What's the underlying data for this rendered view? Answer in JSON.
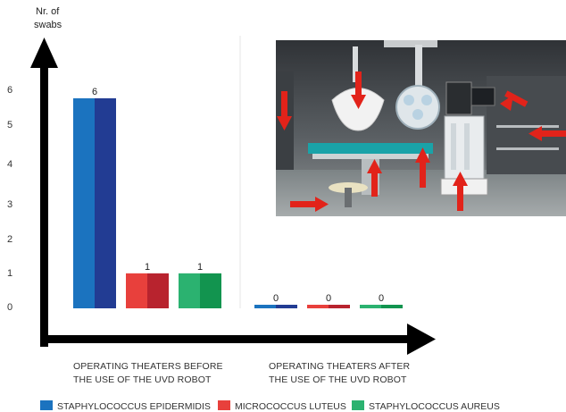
{
  "chart_data": {
    "type": "bar",
    "ylabel_lines": [
      "Nr. of",
      "swabs"
    ],
    "yticks": [
      0,
      1,
      2,
      3,
      4,
      5,
      6
    ],
    "categories": [
      [
        "OPERATING THEATERS BEFORE",
        "THE USE OF THE UVD ROBOT"
      ],
      [
        "OPERATING THEATERS AFTER",
        "THE USE OF THE UVD ROBOT"
      ]
    ],
    "series": [
      {
        "name": "STAPHYLOCOCCUS EPIDERMIDIS",
        "values": [
          6,
          0
        ],
        "color": "#1b73bf",
        "color_dark": "#223c93"
      },
      {
        "name": "MICROCOCCUS LUTEUS",
        "values": [
          1,
          0
        ],
        "color": "#e8403c",
        "color_dark": "#b8232e"
      },
      {
        "name": "STAPHYLOCOCCUS AUREUS",
        "values": [
          1,
          0
        ],
        "color": "#2bb270",
        "color_dark": "#12944f"
      }
    ],
    "data_labels": [
      [
        "6",
        "1",
        "1"
      ],
      [
        "0",
        "0",
        "0"
      ]
    ],
    "ylim": [
      0,
      6
    ],
    "grid": false,
    "legend": "bottom"
  },
  "photo": {
    "subject": "operating-theater-photo"
  }
}
